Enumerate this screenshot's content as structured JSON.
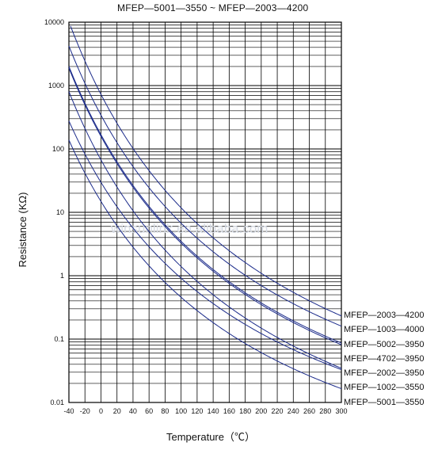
{
  "chart_data": {
    "type": "line",
    "title": "MFEP—5001—3550 ~ MFEP—2003—4200",
    "xlabel": "Temperature（℃）",
    "ylabel": "Resistance (KΩ)",
    "xlim": [
      -40,
      300
    ],
    "ylim": [
      0.01,
      10000
    ],
    "yscale": "log",
    "x_ticks": [
      "-40",
      "-20",
      "0",
      "20",
      "40",
      "60",
      "80",
      "100",
      "120",
      "140",
      "160",
      "180",
      "200",
      "220",
      "240",
      "260",
      "280",
      "300"
    ],
    "y_ticks": [
      "0.01",
      "0.1",
      "1",
      "10",
      "100",
      "1000",
      "10000"
    ],
    "grid": true,
    "watermark": "winsunlink.en.alibaba.com",
    "series": [
      {
        "name": "MFEP—2003—4200",
        "r25": 200,
        "beta": 4200
      },
      {
        "name": "MFEP—1003—4000",
        "r25": 100,
        "beta": 4000
      },
      {
        "name": "MFEP—5002—3950",
        "r25": 50,
        "beta": 3950
      },
      {
        "name": "MFEP—4702—3950",
        "r25": 47,
        "beta": 3950
      },
      {
        "name": "MFEP—2002—3950",
        "r25": 20,
        "beta": 3950
      },
      {
        "name": "MFEP—1002—3550",
        "r25": 10,
        "beta": 3550
      },
      {
        "name": "MFEP—5001—3550",
        "r25": 5,
        "beta": 3550
      }
    ]
  },
  "colors": {
    "line": "#1a2a8a",
    "grid": "#000000"
  }
}
